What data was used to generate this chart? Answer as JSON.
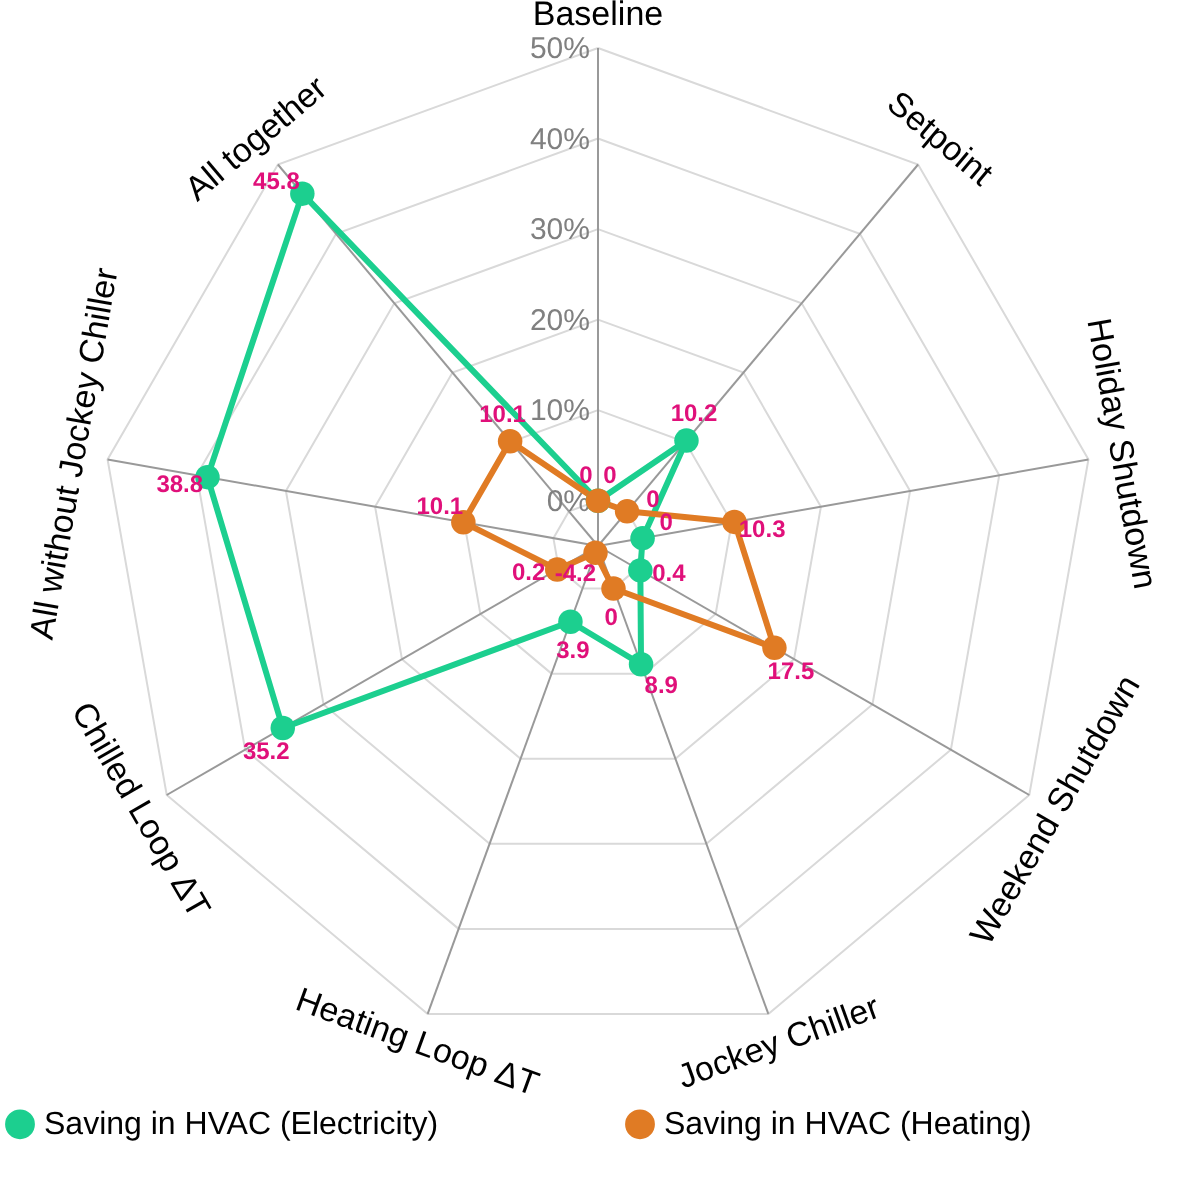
{
  "chart_data": {
    "type": "radar",
    "categories": [
      "Baseline",
      "Setpoint",
      "Holiday Shutdown",
      "Weekend Shutdown",
      "Jockey Chiller",
      "Heating Loop ΔT",
      "Chilled Loop ΔT",
      "All without Jockey Chiller",
      "All together"
    ],
    "series": [
      {
        "name": "Saving in HVAC (Electricity)",
        "color": "#1ccf8f",
        "values": [
          0,
          10.2,
          0,
          0.4,
          8.9,
          3.9,
          35.2,
          38.8,
          45.8
        ]
      },
      {
        "name": "Saving in HVAC (Heating)",
        "color": "#e07b24",
        "values": [
          0,
          0,
          10.3,
          17.5,
          0,
          -4.2,
          0.2,
          10.1,
          10.1
        ]
      }
    ],
    "ylim": [
      -5,
      50
    ],
    "yticks": [
      {
        "value": 0,
        "label": "0%"
      },
      {
        "value": 10,
        "label": "10%"
      },
      {
        "value": 20,
        "label": "20%"
      },
      {
        "value": 30,
        "label": "30%"
      },
      {
        "value": 40,
        "label": "40%"
      },
      {
        "value": 50,
        "label": "50%"
      }
    ],
    "data_labels": true,
    "grid": true,
    "legend": "bottom",
    "marker": "circle"
  }
}
